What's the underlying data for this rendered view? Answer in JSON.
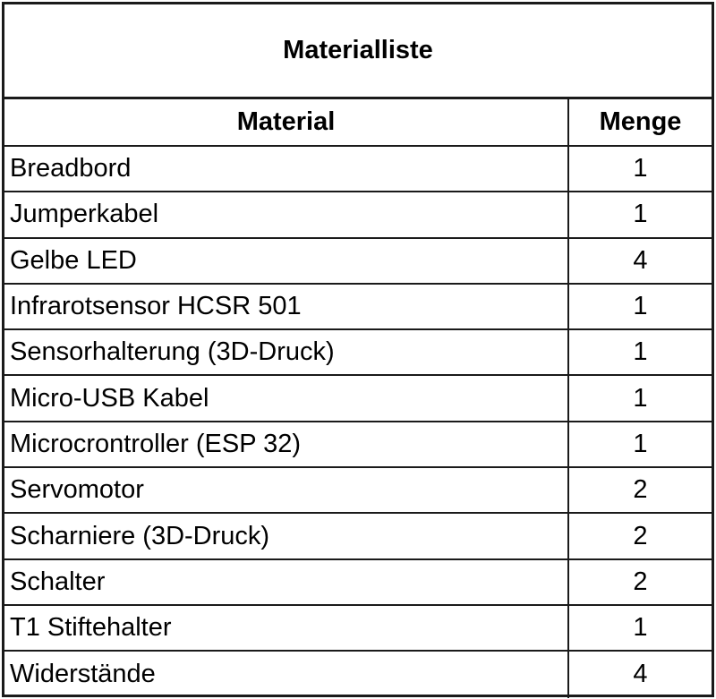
{
  "table": {
    "title": "Materialliste",
    "headers": {
      "material": "Material",
      "quantity": "Menge"
    },
    "rows": [
      {
        "material": "Breadbord",
        "quantity": "1"
      },
      {
        "material": "Jumperkabel",
        "quantity": "1"
      },
      {
        "material": "Gelbe LED",
        "quantity": "4"
      },
      {
        "material": "Infrarotsensor HCSR 501",
        "quantity": "1"
      },
      {
        "material": "Sensorhalterung (3D-Druck)",
        "quantity": "1"
      },
      {
        "material": "Micro-USB Kabel",
        "quantity": "1"
      },
      {
        "material": "Microcrontroller (ESP 32)",
        "quantity": "1"
      },
      {
        "material": "Servomotor",
        "quantity": "2"
      },
      {
        "material": "Scharniere (3D-Druck)",
        "quantity": "2"
      },
      {
        "material": "Schalter",
        "quantity": "2"
      },
      {
        "material": "T1 Stiftehalter",
        "quantity": "1"
      },
      {
        "material": "Widerstände",
        "quantity": "4"
      }
    ]
  }
}
